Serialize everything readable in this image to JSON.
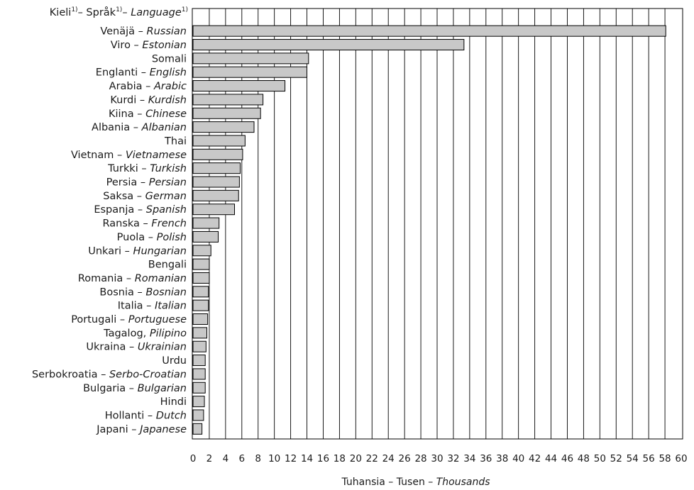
{
  "chart_data": {
    "type": "bar",
    "orientation": "horizontal",
    "category_header": {
      "text1": "Kieli",
      "sup1": "1)",
      "sep1": "– Språk",
      "sup2": "1)",
      "sep2": "– ",
      "text3": "Language",
      "sup3": "1)"
    },
    "xlabel": {
      "plain": "Tuhansia – Tusen – ",
      "italic": "Thousands"
    },
    "xlim": [
      0,
      60
    ],
    "xticks": [
      0,
      2,
      4,
      6,
      8,
      10,
      12,
      14,
      16,
      18,
      20,
      22,
      24,
      26,
      28,
      30,
      32,
      34,
      36,
      38,
      40,
      42,
      44,
      46,
      48,
      50,
      52,
      54,
      56,
      58,
      60
    ],
    "grid": true,
    "bar_color": "#c8c8c8",
    "categories": [
      {
        "name": "Venäjä – ",
        "english": "Russian",
        "value": 58.1
      },
      {
        "name": "Viro – ",
        "english": "Estonian",
        "value": 33.3
      },
      {
        "name": "Somali",
        "english": "",
        "value": 14.2
      },
      {
        "name": "Englanti – ",
        "english": "English",
        "value": 14.0
      },
      {
        "name": "Arabia – ",
        "english": "Arabic",
        "value": 11.3
      },
      {
        "name": "Kurdi – ",
        "english": "Kurdish",
        "value": 8.6
      },
      {
        "name": "Kiina – ",
        "english": "Chinese",
        "value": 8.3
      },
      {
        "name": "Albania – ",
        "english": "Albanian",
        "value": 7.5
      },
      {
        "name": "Thai",
        "english": "",
        "value": 6.4
      },
      {
        "name": "Vietnam – ",
        "english": "Vietnamese",
        "value": 6.1
      },
      {
        "name": "Turkki – ",
        "english": "Turkish",
        "value": 5.8
      },
      {
        "name": "Persia – ",
        "english": "Persian",
        "value": 5.7
      },
      {
        "name": "Saksa – ",
        "english": "German",
        "value": 5.6
      },
      {
        "name": "Espanja – ",
        "english": "Spanish",
        "value": 5.1
      },
      {
        "name": "Ranska – ",
        "english": "French",
        "value": 3.2
      },
      {
        "name": "Puola – ",
        "english": "Polish",
        "value": 3.1
      },
      {
        "name": "Unkari – ",
        "english": "Hungarian",
        "value": 2.2
      },
      {
        "name": "Bengali",
        "english": "",
        "value": 2.0
      },
      {
        "name": "Romania – ",
        "english": "Romanian",
        "value": 2.0
      },
      {
        "name": "Bosnia – ",
        "english": "Bosnian",
        "value": 1.9
      },
      {
        "name": "Italia – ",
        "english": "Italian",
        "value": 1.9
      },
      {
        "name": "Portugali – ",
        "english": "Portuguese",
        "value": 1.8
      },
      {
        "name": "Tagalog, ",
        "english": "Pilipino",
        "value": 1.7
      },
      {
        "name": "Ukraina – ",
        "english": "Ukrainian",
        "value": 1.6
      },
      {
        "name": "Urdu",
        "english": "",
        "value": 1.5
      },
      {
        "name": "Serbokroatia – ",
        "english": "Serbo-Croatian",
        "value": 1.5
      },
      {
        "name": "Bulgaria – ",
        "english": "Bulgarian",
        "value": 1.5
      },
      {
        "name": "Hindi",
        "english": "",
        "value": 1.4
      },
      {
        "name": "Hollanti – ",
        "english": "Dutch",
        "value": 1.3
      },
      {
        "name": "Japani – ",
        "english": "Japanese",
        "value": 1.1
      }
    ]
  }
}
